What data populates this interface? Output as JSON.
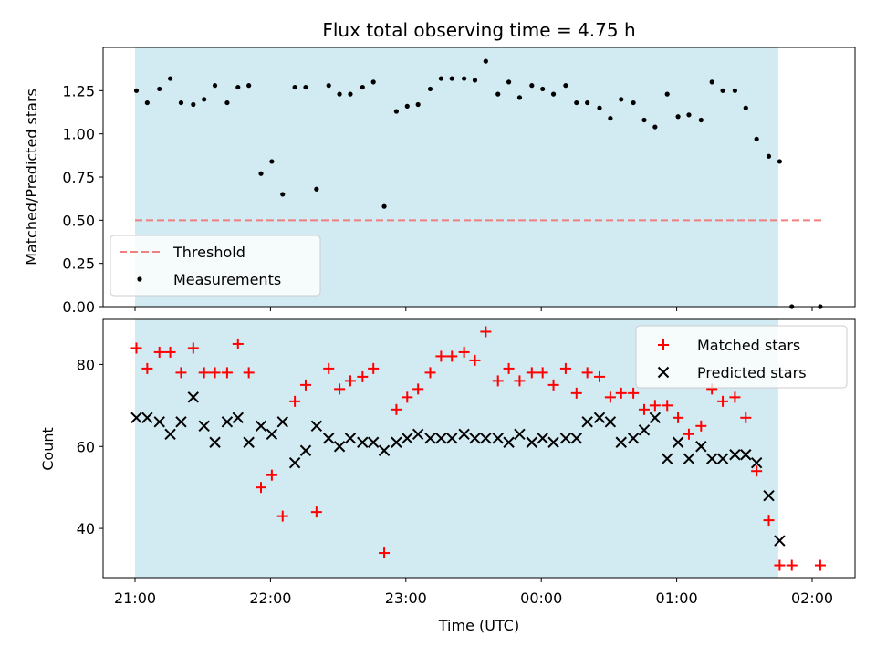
{
  "chart_data": {
    "title": "Flux total observing time = 4.75 h",
    "xlabel": "Time (UTC)",
    "x_tick_labels": [
      "21:00",
      "22:00",
      "23:00",
      "00:00",
      "01:00",
      "02:00"
    ],
    "x_tick_values_hours": [
      0,
      1,
      2,
      3,
      4,
      5
    ],
    "observing_window_hours": [
      0.0,
      4.75
    ],
    "colors": {
      "window": "#add8e6",
      "threshold": "#f08080",
      "measurement": "#000000",
      "matched": "#ff0000",
      "predicted": "#000000"
    },
    "panels": [
      {
        "type": "scatter",
        "ylabel": "Matched/Predicted stars",
        "ylim": [
          0,
          1.5
        ],
        "y_tick_labels": [
          "0.00",
          "0.25",
          "0.50",
          "0.75",
          "1.00",
          "1.25"
        ],
        "y_tick_values": [
          0,
          0.25,
          0.5,
          0.75,
          1.0,
          1.25
        ],
        "legend": [
          "Threshold",
          "Measurements"
        ],
        "legend_position": "bottom-left",
        "threshold": {
          "name": "Threshold",
          "value": 0.5,
          "x_range": [
            0.0,
            5.08
          ]
        },
        "measurements": {
          "name": "Measurements",
          "x": [
            0.01,
            0.09,
            0.18,
            0.26,
            0.34,
            0.43,
            0.51,
            0.59,
            0.68,
            0.76,
            0.84,
            0.93,
            1.01,
            1.09,
            1.18,
            1.26,
            1.34,
            1.43,
            1.51,
            1.59,
            1.68,
            1.76,
            1.84,
            1.93,
            2.01,
            2.09,
            2.18,
            2.26,
            2.34,
            2.43,
            2.51,
            2.59,
            2.68,
            2.76,
            2.84,
            2.93,
            3.01,
            3.09,
            3.18,
            3.26,
            3.34,
            3.43,
            3.51,
            3.59,
            3.68,
            3.76,
            3.84,
            3.93,
            4.01,
            4.09,
            4.18,
            4.26,
            4.34,
            4.43,
            4.51,
            4.59,
            4.68,
            4.76,
            4.85,
            5.06
          ],
          "y": [
            1.25,
            1.18,
            1.26,
            1.32,
            1.18,
            1.17,
            1.2,
            1.28,
            1.18,
            1.27,
            1.28,
            0.77,
            0.84,
            0.65,
            1.27,
            1.27,
            0.68,
            1.28,
            1.23,
            1.23,
            1.27,
            1.3,
            0.58,
            1.13,
            1.16,
            1.17,
            1.26,
            1.32,
            1.32,
            1.32,
            1.31,
            1.42,
            1.23,
            1.3,
            1.21,
            1.28,
            1.26,
            1.23,
            1.28,
            1.18,
            1.18,
            1.15,
            1.09,
            1.2,
            1.18,
            1.08,
            1.04,
            1.23,
            1.1,
            1.11,
            1.08,
            1.3,
            1.25,
            1.25,
            1.15,
            0.97,
            0.87,
            0.84,
            0.0,
            0.0
          ]
        }
      },
      {
        "type": "scatter",
        "ylabel": "Count",
        "ylim": [
          28,
          91
        ],
        "y_tick_labels": [
          "40",
          "60",
          "80"
        ],
        "y_tick_values": [
          40,
          60,
          80
        ],
        "legend": [
          "Matched stars",
          "Predicted stars"
        ],
        "legend_position": "top-right",
        "series": [
          {
            "name": "Matched stars",
            "marker": "plus",
            "x": [
              0.01,
              0.09,
              0.18,
              0.26,
              0.34,
              0.43,
              0.51,
              0.59,
              0.68,
              0.76,
              0.84,
              0.93,
              1.01,
              1.09,
              1.18,
              1.26,
              1.34,
              1.43,
              1.51,
              1.59,
              1.68,
              1.76,
              1.84,
              1.93,
              2.01,
              2.09,
              2.18,
              2.26,
              2.34,
              2.43,
              2.51,
              2.59,
              2.68,
              2.76,
              2.84,
              2.93,
              3.01,
              3.09,
              3.18,
              3.26,
              3.34,
              3.43,
              3.51,
              3.59,
              3.68,
              3.76,
              3.84,
              3.93,
              4.01,
              4.09,
              4.18,
              4.26,
              4.34,
              4.43,
              4.51,
              4.59,
              4.68,
              4.76,
              4.85,
              5.06
            ],
            "y": [
              84,
              79,
              83,
              83,
              78,
              84,
              78,
              78,
              78,
              85,
              78,
              50,
              53,
              43,
              71,
              75,
              44,
              79,
              74,
              76,
              77,
              79,
              34,
              69,
              72,
              74,
              78,
              82,
              82,
              83,
              81,
              88,
              76,
              79,
              76,
              78,
              78,
              75,
              79,
              73,
              78,
              77,
              72,
              73,
              73,
              69,
              70,
              70,
              67,
              63,
              65,
              74,
              71,
              72,
              67,
              54,
              42,
              31,
              31,
              31
            ]
          },
          {
            "name": "Predicted stars",
            "marker": "x",
            "x": [
              0.01,
              0.09,
              0.18,
              0.26,
              0.34,
              0.43,
              0.51,
              0.59,
              0.68,
              0.76,
              0.84,
              0.93,
              1.01,
              1.09,
              1.18,
              1.26,
              1.34,
              1.43,
              1.51,
              1.59,
              1.68,
              1.76,
              1.84,
              1.93,
              2.01,
              2.09,
              2.18,
              2.26,
              2.34,
              2.43,
              2.51,
              2.59,
              2.68,
              2.76,
              2.84,
              2.93,
              3.01,
              3.09,
              3.18,
              3.26,
              3.34,
              3.43,
              3.51,
              3.59,
              3.68,
              3.76,
              3.84,
              3.93,
              4.01,
              4.09,
              4.18,
              4.26,
              4.34,
              4.43,
              4.51,
              4.59,
              4.68,
              4.76
            ],
            "y": [
              67,
              67,
              66,
              63,
              66,
              72,
              65,
              61,
              66,
              67,
              61,
              65,
              63,
              66,
              56,
              59,
              65,
              62,
              60,
              62,
              61,
              61,
              59,
              61,
              62,
              63,
              62,
              62,
              62,
              63,
              62,
              62,
              62,
              61,
              63,
              61,
              62,
              61,
              62,
              62,
              66,
              67,
              66,
              61,
              62,
              64,
              67,
              57,
              61,
              57,
              60,
              57,
              57,
              58,
              58,
              56,
              48,
              37
            ]
          }
        ]
      }
    ]
  }
}
